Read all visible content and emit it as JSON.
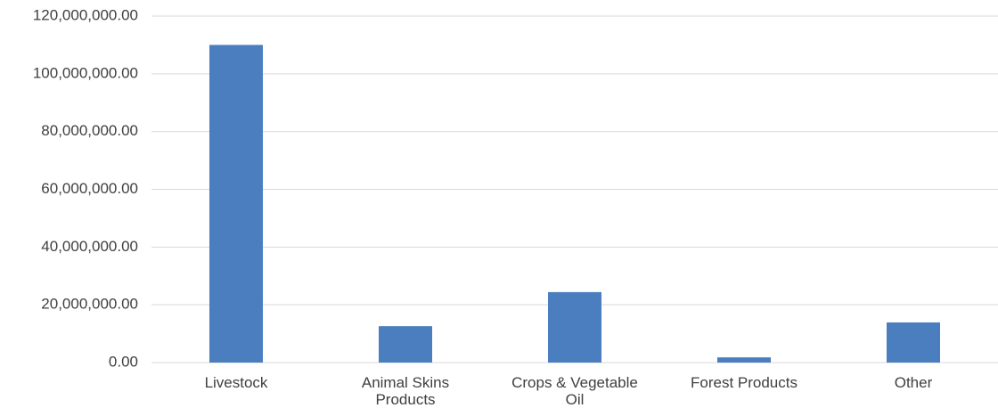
{
  "chart_data": {
    "type": "bar",
    "categories": [
      "Livestock",
      "Animal Skins Products",
      "Crops & Vegetable Oil",
      "Forest Products",
      "Other"
    ],
    "values": [
      110000000,
      12600000,
      24400000,
      1800000,
      13900000
    ],
    "color": "#4a7ebf",
    "ylim": [
      0,
      120000000
    ],
    "yticks": [
      {
        "value": 0,
        "label": "0.00"
      },
      {
        "value": 20000000,
        "label": "20,000,000.00"
      },
      {
        "value": 40000000,
        "label": "40,000,000.00"
      },
      {
        "value": 60000000,
        "label": "60,000,000.00"
      },
      {
        "value": 80000000,
        "label": "80,000,000.00"
      },
      {
        "value": 100000000,
        "label": "100,000,000.00"
      },
      {
        "value": 120000000,
        "label": "120,000,000.00"
      }
    ],
    "grid": true
  }
}
